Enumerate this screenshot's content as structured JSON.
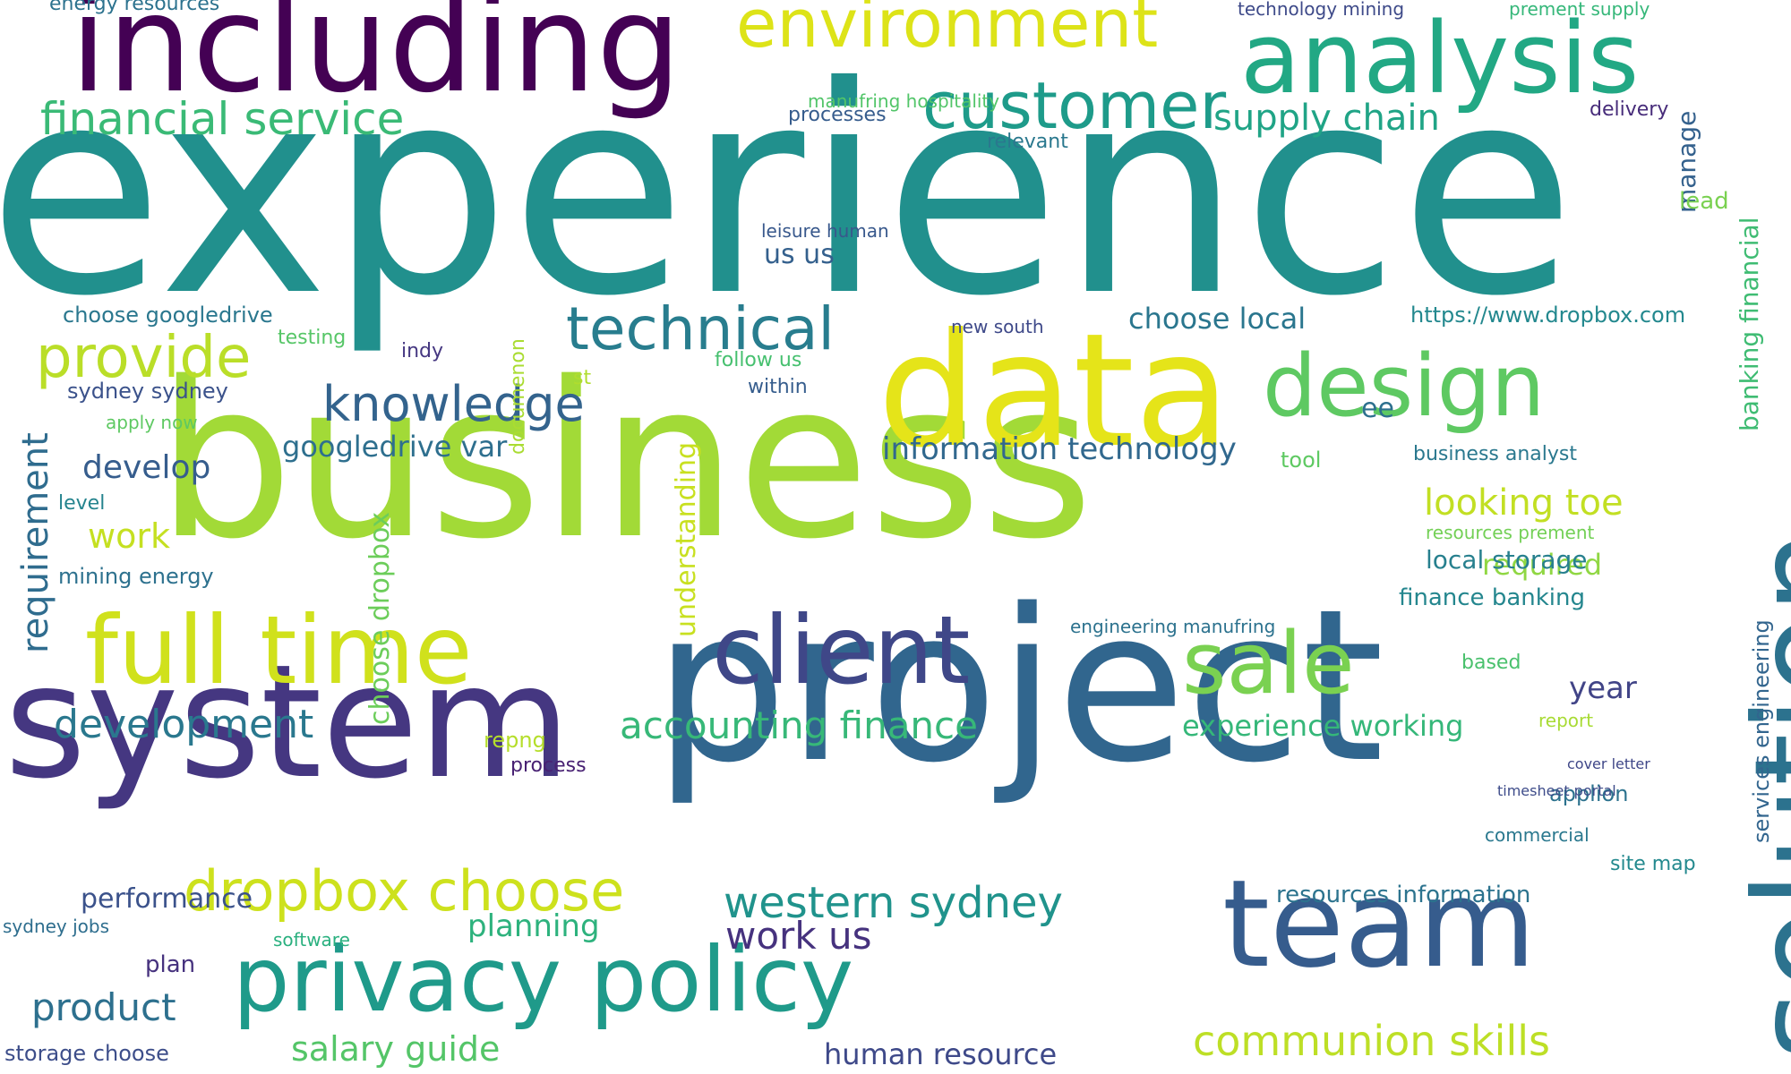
{
  "words": [
    {
      "text": "experience",
      "color": "#21908d",
      "vertical": false
    },
    {
      "text": "business",
      "color": "#a2da37",
      "vertical": false
    },
    {
      "text": "project",
      "color": "#31668e",
      "vertical": false
    },
    {
      "text": "system",
      "color": "#453781",
      "vertical": false
    },
    {
      "text": "including",
      "color": "#440154",
      "vertical": false
    },
    {
      "text": "solution",
      "color": "#2c728e",
      "vertical": true
    },
    {
      "text": "data",
      "color": "#e5e419",
      "vertical": false
    },
    {
      "text": "team",
      "color": "#365c8d",
      "vertical": false
    },
    {
      "text": "analysis",
      "color": "#22a884",
      "vertical": false
    },
    {
      "text": "full time",
      "color": "#d0e11c",
      "vertical": false
    },
    {
      "text": "client",
      "color": "#3f4788",
      "vertical": false
    },
    {
      "text": "privacy policy",
      "color": "#1f9a8a",
      "vertical": false
    },
    {
      "text": "sale",
      "color": "#7ad151",
      "vertical": false
    },
    {
      "text": "design",
      "color": "#5ec962",
      "vertical": false
    },
    {
      "text": "environment",
      "color": "#dde318",
      "vertical": false
    },
    {
      "text": "customer",
      "color": "#1e9b8a",
      "vertical": false
    },
    {
      "text": "technical",
      "color": "#287d8e",
      "vertical": false
    },
    {
      "text": "provide",
      "color": "#bade28",
      "vertical": false
    },
    {
      "text": "knowledge",
      "color": "#33638d",
      "vertical": false
    },
    {
      "text": "dropbox choose",
      "color": "#cde11d",
      "vertical": false
    },
    {
      "text": "financial service",
      "color": "#3aba76",
      "vertical": false
    },
    {
      "text": "supply chain",
      "color": "#20a486",
      "vertical": false
    },
    {
      "text": "development",
      "color": "#2a788e",
      "vertical": false
    },
    {
      "text": "western sydney",
      "color": "#20938c",
      "vertical": false
    },
    {
      "text": "accounting finance",
      "color": "#37b878",
      "vertical": false
    },
    {
      "text": "communion skills",
      "color": "#bddf26",
      "vertical": false
    },
    {
      "text": "product",
      "color": "#2d708e",
      "vertical": false
    },
    {
      "text": "salary guide",
      "color": "#54c568",
      "vertical": false
    },
    {
      "text": "requirement",
      "color": "#2f6c8e",
      "vertical": true
    },
    {
      "text": "information technology",
      "color": "#31688e",
      "vertical": false
    },
    {
      "text": "looking toe",
      "color": "#c2df23",
      "vertical": false
    },
    {
      "text": "experience working",
      "color": "#35b779",
      "vertical": false
    },
    {
      "text": "choose local",
      "color": "#2a768e",
      "vertical": false
    },
    {
      "text": "googledrive var",
      "color": "#2e6f8e",
      "vertical": false
    },
    {
      "text": "human resource",
      "color": "#3e4989",
      "vertical": false
    },
    {
      "text": "resources information",
      "color": "#2c738e",
      "vertical": false
    },
    {
      "text": "work us",
      "color": "#46327e",
      "vertical": false
    },
    {
      "text": "performance",
      "color": "#3b528b",
      "vertical": false
    },
    {
      "text": "develop",
      "color": "#365d8d",
      "vertical": false
    },
    {
      "text": "work",
      "color": "#c5e021",
      "vertical": false
    },
    {
      "text": "planning",
      "color": "#2db27d",
      "vertical": false
    },
    {
      "text": "year",
      "color": "#414487",
      "vertical": false
    },
    {
      "text": "required",
      "color": "#90d743",
      "vertical": false
    },
    {
      "text": "local storage",
      "color": "#27808e",
      "vertical": false
    },
    {
      "text": "finance banking",
      "color": "#24868e",
      "vertical": false
    },
    {
      "text": "understanding",
      "color": "#c8e020",
      "vertical": true
    },
    {
      "text": "choose dropbox",
      "color": "#6ccd5a",
      "vertical": true
    },
    {
      "text": "manage",
      "color": "#34618d",
      "vertical": true
    },
    {
      "text": "banking financial",
      "color": "#3fbc73",
      "vertical": true
    },
    {
      "text": "services engineering",
      "color": "#32658e",
      "vertical": true
    },
    {
      "text": "choose googledrive",
      "color": "#2a778e",
      "vertical": false
    },
    {
      "text": "energy resources",
      "color": "#2c728e",
      "vertical": false
    },
    {
      "text": "manufring hospitality",
      "color": "#52c569",
      "vertical": false
    },
    {
      "text": "processes",
      "color": "#365c8d",
      "vertical": false
    },
    {
      "text": "delivery",
      "color": "#472c7a",
      "vertical": false
    },
    {
      "text": "technology mining",
      "color": "#3e4a89",
      "vertical": false
    },
    {
      "text": "prement supply",
      "color": "#35b779",
      "vertical": false
    },
    {
      "text": "relevant",
      "color": "#2a788e",
      "vertical": false
    },
    {
      "text": "lead",
      "color": "#7ad151",
      "vertical": false
    },
    {
      "text": "us us",
      "color": "#34608d",
      "vertical": false
    },
    {
      "text": "leisure human",
      "color": "#38588c",
      "vertical": false
    },
    {
      "text": "https://www.dropbox.com",
      "color": "#23888e",
      "vertical": false
    },
    {
      "text": "testing",
      "color": "#56c667",
      "vertical": false
    },
    {
      "text": "sydney sydney",
      "color": "#3b528b",
      "vertical": false
    },
    {
      "text": "indy",
      "color": "#453781",
      "vertical": false
    },
    {
      "text": "follow us",
      "color": "#46c06f",
      "vertical": false
    },
    {
      "text": "within",
      "color": "#365d8d",
      "vertical": false
    },
    {
      "text": "documenon",
      "color": "#aadc32",
      "vertical": true
    },
    {
      "text": "repng",
      "color": "#b5de2b",
      "vertical": false
    },
    {
      "text": "process",
      "color": "#482173",
      "vertical": false
    },
    {
      "text": "st",
      "color": "#b0dd2f",
      "vertical": false
    },
    {
      "text": "ee",
      "color": "#2d708e",
      "vertical": false
    },
    {
      "text": "business analyst",
      "color": "#2a788e",
      "vertical": false
    },
    {
      "text": "tool",
      "color": "#5ec962",
      "vertical": false
    },
    {
      "text": "resources prement",
      "color": "#73d056",
      "vertical": false
    },
    {
      "text": "mining energy",
      "color": "#2d718e",
      "vertical": false
    },
    {
      "text": "level",
      "color": "#25848e",
      "vertical": false
    },
    {
      "text": "apply now",
      "color": "#5ec962",
      "vertical": false
    },
    {
      "text": "based",
      "color": "#4ac16d",
      "vertical": false
    },
    {
      "text": "report",
      "color": "#a8db34",
      "vertical": false
    },
    {
      "text": "applion",
      "color": "#2c728e",
      "vertical": false
    },
    {
      "text": "site map",
      "color": "#23898e",
      "vertical": false
    },
    {
      "text": "commercial",
      "color": "#2a788e",
      "vertical": false
    },
    {
      "text": "engineering manufring",
      "color": "#2c728e",
      "vertical": false
    },
    {
      "text": "new south",
      "color": "#3e4989",
      "vertical": false
    },
    {
      "text": "plan",
      "color": "#46327e",
      "vertical": false
    },
    {
      "text": "software",
      "color": "#2ab07f",
      "vertical": false
    },
    {
      "text": "storage choose",
      "color": "#3d4e8a",
      "vertical": false
    },
    {
      "text": "sydney jobs",
      "color": "#2e6e8e",
      "vertical": false
    },
    {
      "text": "cover letter",
      "color": "#3f4788",
      "vertical": false
    },
    {
      "text": "timesheet portal",
      "color": "#3e4c8a",
      "vertical": false
    }
  ]
}
